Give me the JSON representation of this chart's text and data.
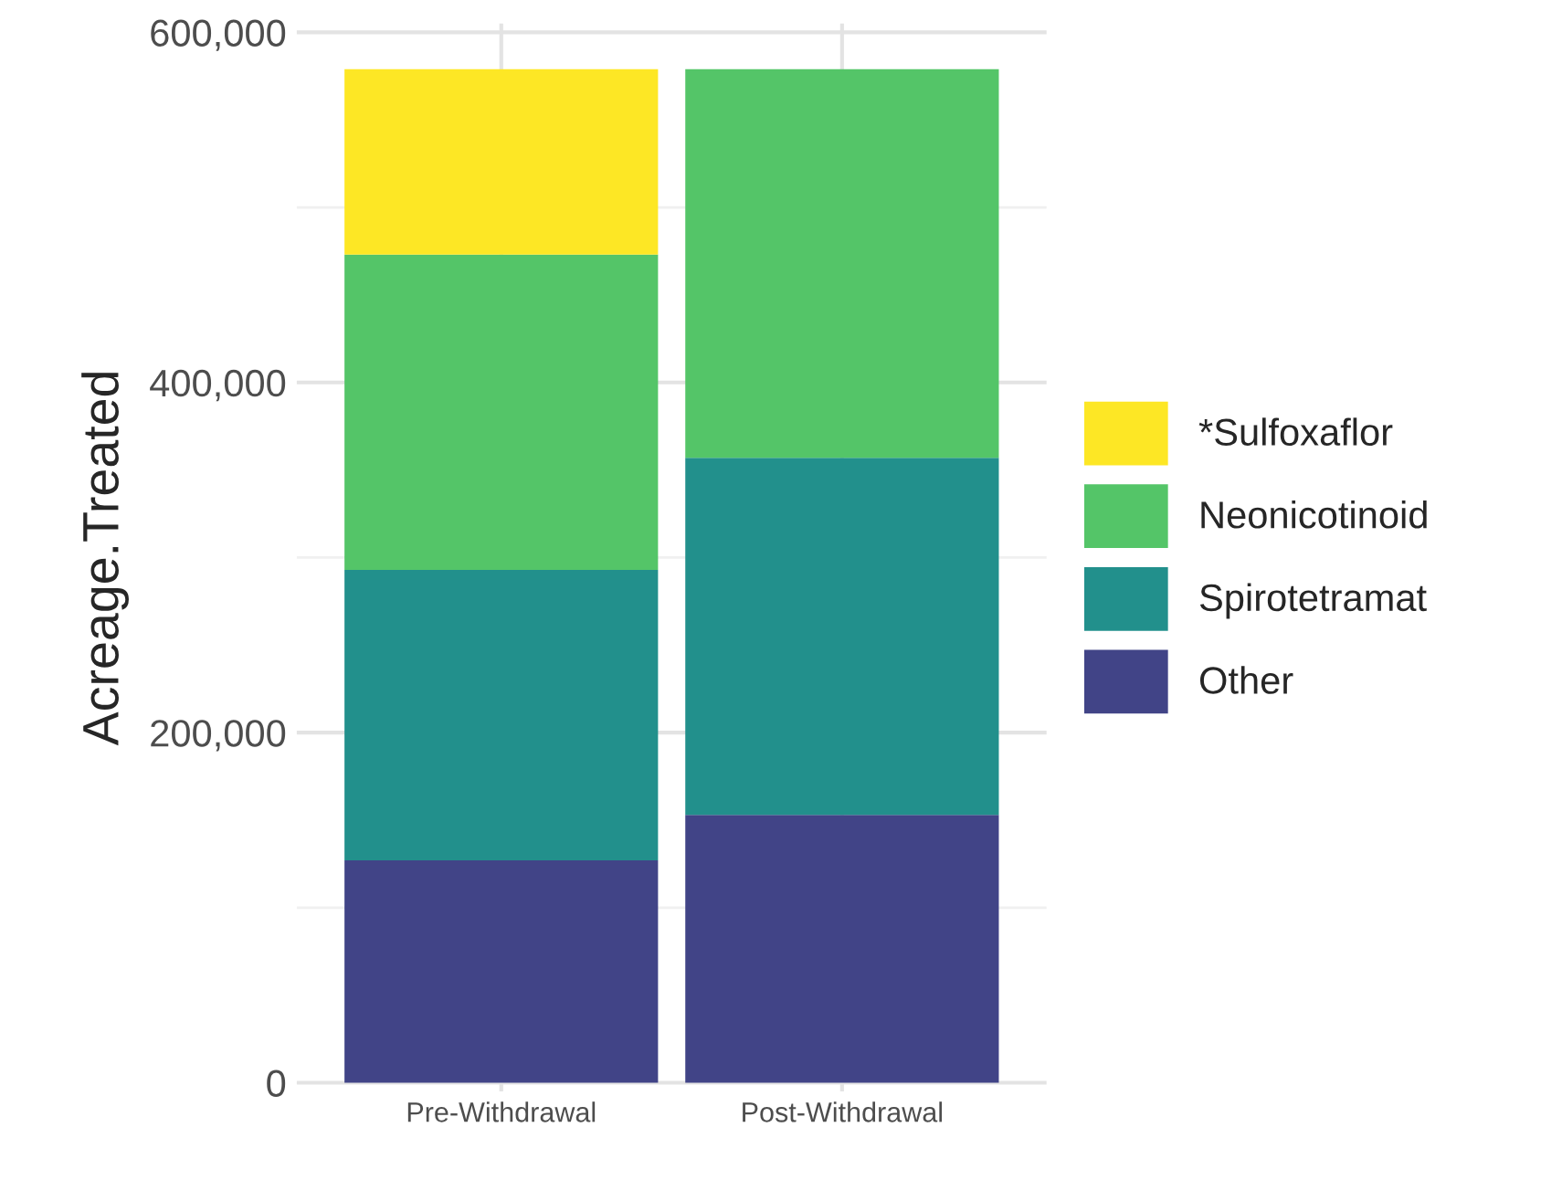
{
  "chart_data": {
    "type": "bar",
    "stacked": true,
    "ylabel": "Acreage.Treated",
    "categories": [
      "Pre-Withdrawal",
      "Post-Withdrawal"
    ],
    "series": [
      {
        "name": "Other",
        "color": "#414487",
        "values": [
          127000,
          153000
        ]
      },
      {
        "name": "Spirotetramat",
        "color": "#22908c",
        "values": [
          166000,
          204000
        ]
      },
      {
        "name": "Neonicotinoid",
        "color": "#54c568",
        "values": [
          180000,
          222000
        ]
      },
      {
        "name": "*Sulfoxaflor",
        "color": "#fde725",
        "values": [
          106000,
          null
        ]
      }
    ],
    "ylim": [
      -5000,
      605000
    ],
    "yticks": [
      {
        "value": 0,
        "label": "0"
      },
      {
        "value": 200000,
        "label": "200,000"
      },
      {
        "value": 400000,
        "label": "400,000"
      },
      {
        "value": 600000,
        "label": "600,000"
      }
    ],
    "grid": true,
    "legend": "right"
  }
}
